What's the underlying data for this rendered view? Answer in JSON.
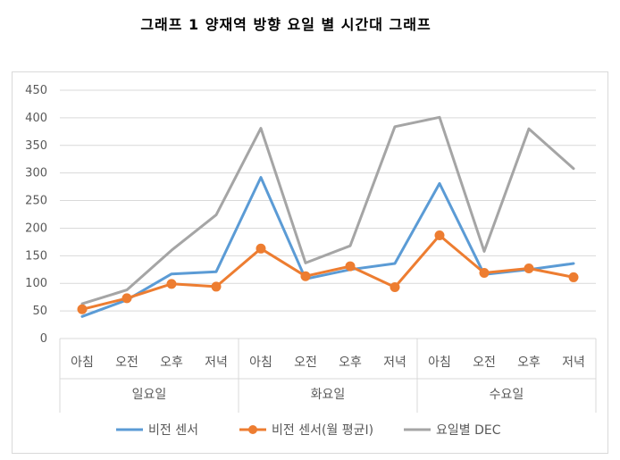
{
  "chart_data": {
    "type": "line",
    "title": "그래프 1 양재역 방향 요일 별 시간대 그래프",
    "ylim": [
      0,
      450
    ],
    "yticks": [
      0,
      50,
      100,
      150,
      200,
      250,
      300,
      350,
      400,
      450
    ],
    "grid": true,
    "legend_position": "bottom",
    "groups": [
      {
        "name": "일요일",
        "categories": [
          "아침",
          "오전",
          "오후",
          "저녁"
        ]
      },
      {
        "name": "화요일",
        "categories": [
          "아침",
          "오전",
          "오후",
          "저녁"
        ]
      },
      {
        "name": "수요일",
        "categories": [
          "아침",
          "오전",
          "오후",
          "저녁"
        ]
      }
    ],
    "series": [
      {
        "name": "비전 센서",
        "color": "#5b9bd5",
        "marker": false,
        "values": [
          40,
          70,
          117,
          121,
          292,
          108,
          125,
          136,
          281,
          116,
          125,
          136
        ]
      },
      {
        "name": "비전 센서(월 평균I)",
        "color": "#ed7d31",
        "marker": true,
        "values": [
          53,
          73,
          99,
          94,
          163,
          113,
          131,
          93,
          187,
          119,
          127,
          111
        ]
      },
      {
        "name": "요일별 DEC",
        "color": "#a5a5a5",
        "marker": false,
        "values": [
          63,
          88,
          160,
          224,
          381,
          137,
          168,
          384,
          401,
          158,
          380,
          308
        ]
      }
    ]
  }
}
